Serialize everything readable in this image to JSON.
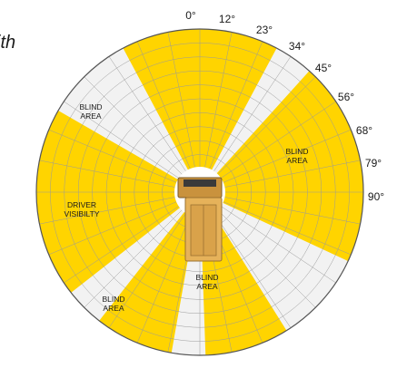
{
  "caption_fragment": "ith",
  "angle_labels": [
    "0°",
    "12°",
    "23°",
    "34°",
    "45°",
    "56°",
    "68°",
    "79°",
    "90°"
  ],
  "region_labels": {
    "blind_area": [
      "BLIND",
      "AREA"
    ],
    "driver_visibility": [
      "DRIVER",
      "VISIBILTY"
    ]
  },
  "colors": {
    "visible": "#ffd400",
    "blind": "#f2f2f2",
    "grid": "#9a9a9a",
    "truck_body": "#e6b25a",
    "truck_cab": "#c9923d",
    "text": "#1a1a1a"
  },
  "visibility_sectors_deg": [
    [
      -28,
      28
    ],
    [
      42,
      115
    ],
    [
      148,
      178
    ],
    [
      190,
      218
    ],
    [
      232,
      300
    ]
  ]
}
